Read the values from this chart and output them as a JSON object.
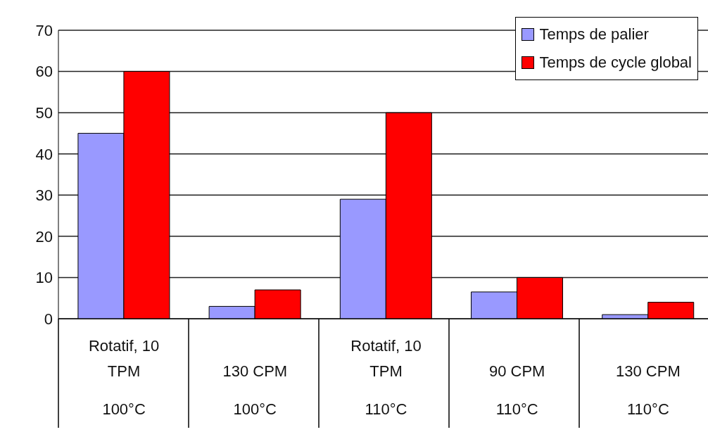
{
  "chart_data": {
    "type": "bar",
    "categories": [
      "Rotatif, 10 TPM\n100°C",
      "130 CPM\n100°C",
      "Rotatif, 10 TPM\n110°C",
      "90 CPM\n110°C",
      "130 CPM\n110°C"
    ],
    "series": [
      {
        "name": "Temps de palier",
        "color": "#9999ff",
        "values": [
          45,
          3,
          29,
          6.5,
          1
        ]
      },
      {
        "name": "Temps de cycle global",
        "color": "#ff0000",
        "values": [
          60,
          7,
          50,
          10,
          4
        ]
      }
    ],
    "ylim": [
      0,
      70
    ],
    "yticks": [
      0,
      10,
      20,
      30,
      40,
      50,
      60,
      70
    ],
    "grid": "y",
    "legend": "top right"
  }
}
